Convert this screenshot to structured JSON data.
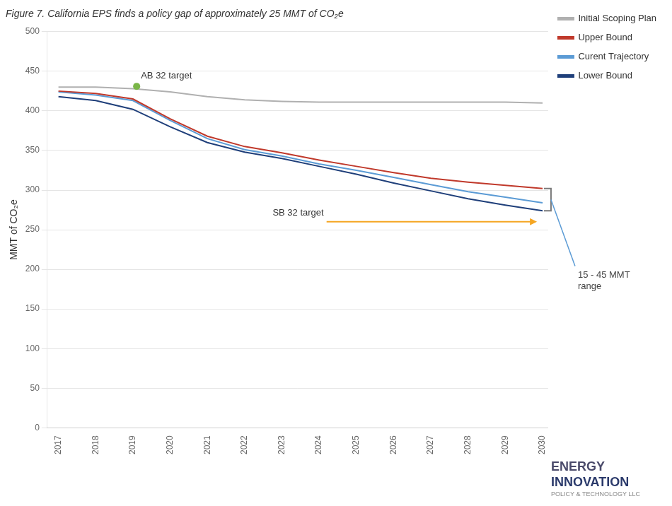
{
  "chart_data": {
    "type": "line",
    "title": "Figure 7. California EPS finds a policy gap of approximately 25 MMT of CO₂e",
    "ylabel": "MMT of CO₂e",
    "x": [
      2017,
      2018,
      2019,
      2020,
      2021,
      2022,
      2023,
      2024,
      2025,
      2026,
      2027,
      2028,
      2029,
      2030
    ],
    "series": [
      {
        "name": "Initial Scoping Plan",
        "color": "#b0b0b0",
        "values": [
          430,
          430,
          428,
          424,
          418,
          414,
          412,
          411,
          411,
          411,
          411,
          411,
          411,
          410
        ]
      },
      {
        "name": "Upper Bound",
        "color": "#c0392b",
        "values": [
          425,
          422,
          415,
          390,
          368,
          355,
          347,
          338,
          330,
          322,
          315,
          310,
          306,
          302
        ]
      },
      {
        "name": "Curent Trajectory",
        "color": "#5b9bd5",
        "values": [
          424,
          420,
          413,
          388,
          365,
          351,
          343,
          333,
          325,
          316,
          307,
          298,
          291,
          284
        ]
      },
      {
        "name": "Lower Bound",
        "color": "#1f3f7a",
        "values": [
          418,
          413,
          402,
          380,
          360,
          348,
          340,
          330,
          320,
          309,
          299,
          289,
          281,
          274
        ]
      }
    ],
    "xlim": [
      2016.7,
      2030.15
    ],
    "xticks": [
      2017,
      2018,
      2019,
      2020,
      2021,
      2022,
      2023,
      2024,
      2025,
      2026,
      2027,
      2028,
      2029,
      2030
    ],
    "ylim": [
      0,
      500
    ],
    "yticks": [
      0,
      50,
      100,
      150,
      200,
      250,
      300,
      350,
      400,
      450,
      500
    ],
    "grid": "y",
    "legend": "right",
    "annotations": [
      {
        "type": "point",
        "text": "AB 32 target",
        "x": 2019.1,
        "y": 431,
        "color": "#7ab648"
      },
      {
        "type": "arrow",
        "text": "SB 32 target",
        "y": 260,
        "x_start": 2024.2,
        "x_end": 2029.85,
        "color": "#f5a623"
      },
      {
        "type": "bracket",
        "text": "15 - 45 MMT\nrange",
        "y_top": 302,
        "y_bottom": 274,
        "color": "#7a7a7a",
        "line_color": "#5b9bd5"
      }
    ],
    "logo": [
      "ENERGY",
      "INNOVATION",
      "POLICY & TECHNOLOGY LLC"
    ]
  }
}
